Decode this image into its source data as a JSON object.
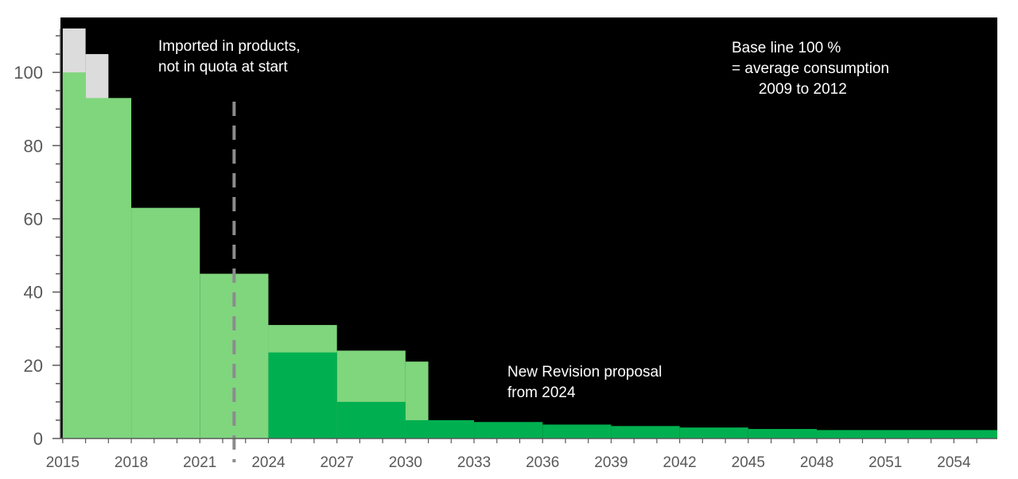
{
  "chart_data": {
    "type": "area",
    "title": "",
    "xlabel": "",
    "ylabel": "",
    "xlim": [
      2014.9,
      2055.9
    ],
    "ylim": [
      0,
      115
    ],
    "x_ticks": [
      2015,
      2018,
      2021,
      2024,
      2027,
      2030,
      2033,
      2036,
      2039,
      2042,
      2045,
      2048,
      2051,
      2054
    ],
    "y_ticks": [
      0,
      20,
      40,
      60,
      80,
      100
    ],
    "background": "#000000",
    "grid": false,
    "series": [
      {
        "color": "#dcdcdc",
        "steps": [
          {
            "x0": 2015,
            "x1": 2016,
            "value": 112
          },
          {
            "x0": 2016,
            "x1": 2017,
            "value": 105
          }
        ]
      },
      {
        "color": "#7fd67d",
        "steps": [
          {
            "x0": 2015,
            "x1": 2016,
            "value": 100
          },
          {
            "x0": 2016,
            "x1": 2018,
            "value": 93
          },
          {
            "x0": 2018,
            "x1": 2021,
            "value": 63
          },
          {
            "x0": 2021,
            "x1": 2024,
            "value": 45
          },
          {
            "x0": 2024,
            "x1": 2027,
            "value": 31
          },
          {
            "x0": 2027,
            "x1": 2030,
            "value": 24
          },
          {
            "x0": 2030,
            "x1": 2031,
            "value": 21
          }
        ]
      },
      {
        "color": "#00b050",
        "steps": [
          {
            "x0": 2024,
            "x1": 2027,
            "value": 23.5
          },
          {
            "x0": 2027,
            "x1": 2030,
            "value": 10
          },
          {
            "x0": 2030,
            "x1": 2033,
            "value": 5
          },
          {
            "x0": 2033,
            "x1": 2036,
            "value": 4.5
          },
          {
            "x0": 2036,
            "x1": 2039,
            "value": 3.8
          },
          {
            "x0": 2039,
            "x1": 2042,
            "value": 3.4
          },
          {
            "x0": 2042,
            "x1": 2045,
            "value": 3
          },
          {
            "x0": 2045,
            "x1": 2048,
            "value": 2.6
          },
          {
            "x0": 2048,
            "x1": 2055.9,
            "value": 2.3
          }
        ]
      }
    ],
    "marker_line": {
      "x": 2022.5,
      "color": "#8c8c8c"
    },
    "annotations": {
      "imported": [
        "Imported in products,",
        "not in quota at start"
      ],
      "baseline": [
        "Base line 100 %",
        "= average consumption",
        "   2009 to 2012"
      ],
      "revision": [
        "New Revision proposal",
        "from 2024"
      ]
    }
  }
}
